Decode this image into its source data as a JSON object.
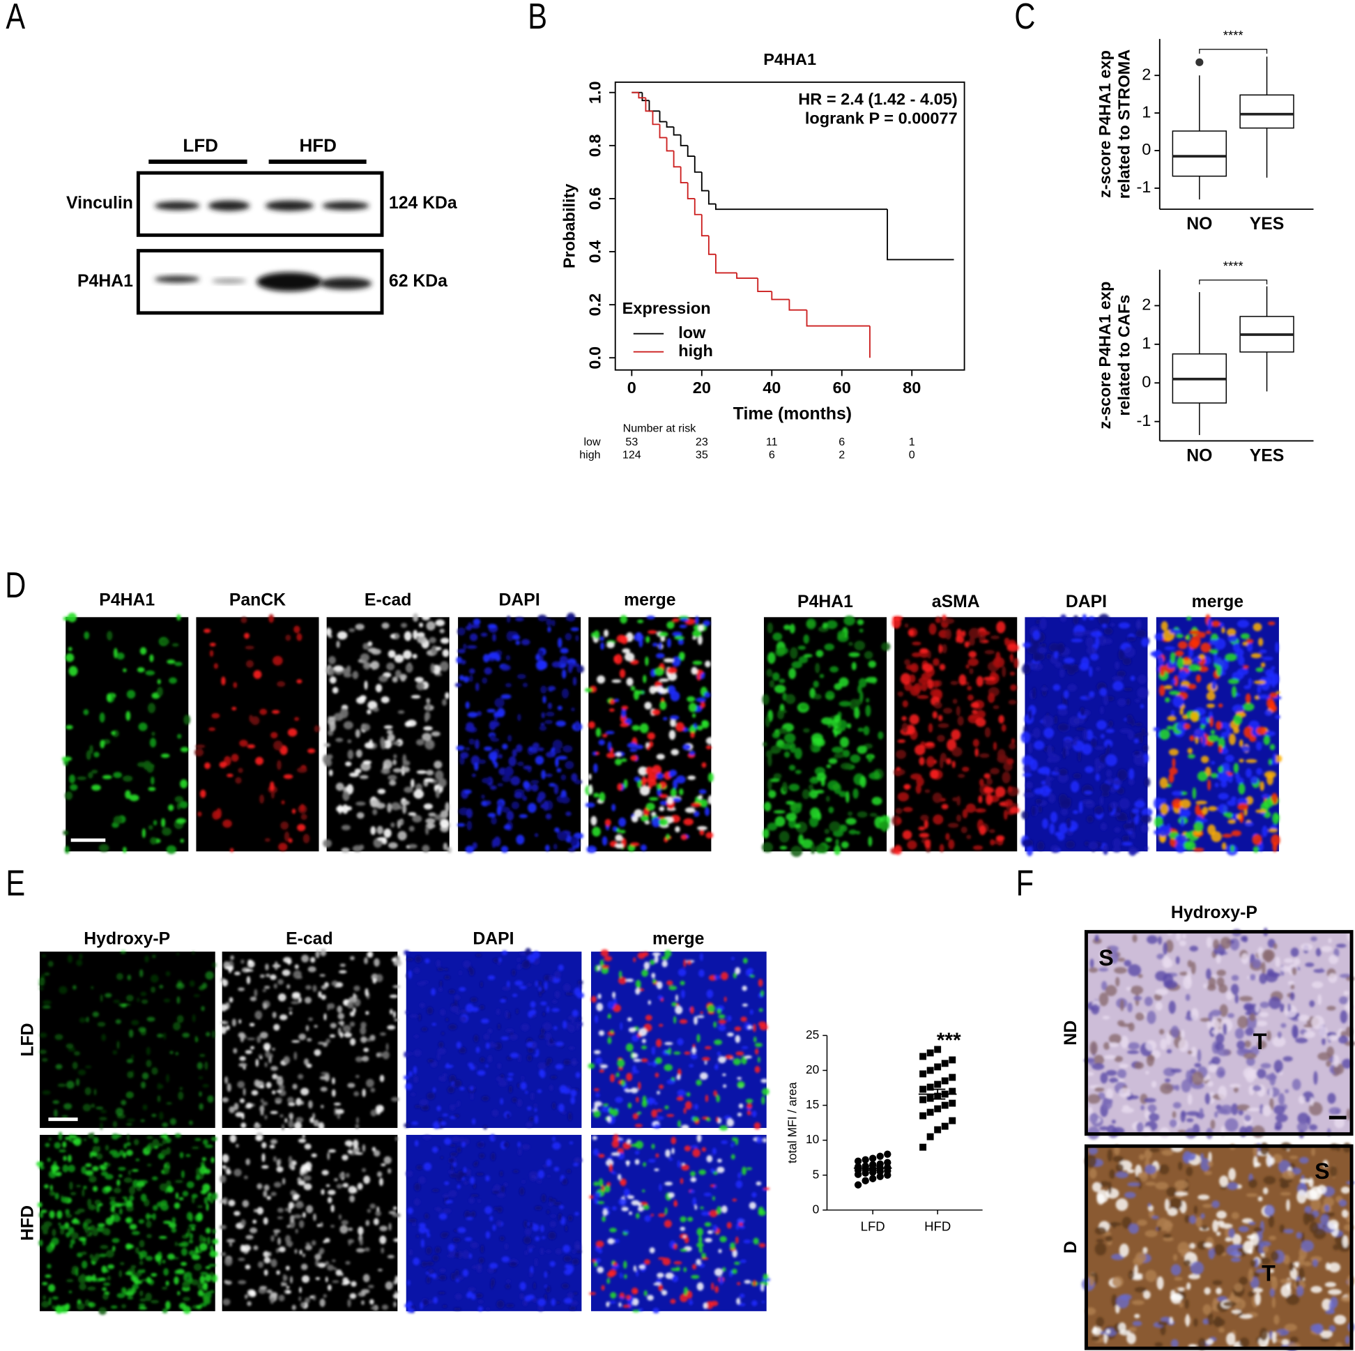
{
  "panel_labels": [
    "A",
    "B",
    "C",
    "D",
    "E",
    "F"
  ],
  "western_blot": {
    "groups": [
      "LFD",
      "HFD"
    ],
    "rows": [
      {
        "protein": "Vinculin",
        "size": "124 KDa"
      },
      {
        "protein": "P4HA1",
        "size": "62 KDa"
      }
    ]
  },
  "panel_d": {
    "left_channels": [
      "P4HA1",
      "PanCK",
      "E-cad",
      "DAPI",
      "merge"
    ],
    "right_channels": [
      "P4HA1",
      "aSMA",
      "DAPI",
      "merge"
    ]
  },
  "panel_e": {
    "channels": [
      "Hydroxy-P",
      "E-cad",
      "DAPI",
      "merge"
    ],
    "rows": [
      "LFD",
      "HFD"
    ]
  },
  "panel_f": {
    "title": "Hydroxy-P",
    "rows": [
      {
        "label": "ND",
        "regions": [
          "S",
          "T"
        ]
      },
      {
        "label": "D",
        "regions": [
          "S",
          "T"
        ]
      }
    ]
  },
  "chart_data": [
    {
      "type": "line",
      "step": true,
      "title": "P4HA1",
      "xlabel": "Time (months)",
      "ylabel": "Probability",
      "xlim": [
        -4.7,
        95
      ],
      "xticks": [
        0,
        20,
        40,
        60,
        80
      ],
      "ylim": [
        -0.046,
        1.039
      ],
      "yticks": [
        {
          "value": 0,
          "label": "0.0"
        },
        0.2,
        0.4,
        0.6,
        0.8,
        {
          "value": 1,
          "label": "1.0"
        }
      ],
      "annotations": [
        "HR = 2.4 (1.42 - 4.05)",
        "logrank P = 0.00077"
      ],
      "legend_title": "Expression",
      "series": [
        {
          "name": "low",
          "color": "#000000",
          "x": [
            0,
            3,
            5,
            8,
            10,
            12,
            14,
            16,
            18,
            20,
            22,
            24,
            73,
            92
          ],
          "values": [
            1,
            0.97,
            0.93,
            0.89,
            0.87,
            0.84,
            0.8,
            0.76,
            0.7,
            0.63,
            0.58,
            0.56,
            0.37,
            0.37
          ]
        },
        {
          "name": "high",
          "color": "#cc1f1f",
          "x": [
            0,
            2,
            4,
            6,
            8,
            10,
            12,
            14,
            16,
            18,
            20,
            22,
            24,
            30,
            36,
            40,
            45,
            50,
            68
          ],
          "values": [
            1,
            0.98,
            0.93,
            0.88,
            0.83,
            0.78,
            0.72,
            0.66,
            0.6,
            0.54,
            0.46,
            0.39,
            0.32,
            0.3,
            0.25,
            0.22,
            0.18,
            0.12,
            0
          ]
        }
      ],
      "risk_table": {
        "title": "Number at risk",
        "rows": [
          [
            53,
            23,
            11,
            6,
            1
          ],
          [
            124,
            35,
            6,
            2,
            0
          ]
        ]
      }
    },
    {
      "type": "box",
      "ylabel": [
        "z-score P4HA1 exp",
        "related to STROMA"
      ],
      "categories": [
        "NO",
        "YES"
      ],
      "ylim": [
        -1.56,
        2.97
      ],
      "yticks": [
        -1,
        0,
        1,
        2
      ],
      "color": "#ffffff",
      "significance": "****",
      "boxes": [
        {
          "whislo": -1.3,
          "q1": -0.68,
          "median": -0.15,
          "q3": 0.52,
          "whishi": 2.0,
          "outliers": [
            2.35
          ]
        },
        {
          "whislo": -0.72,
          "q1": 0.6,
          "median": 0.97,
          "q3": 1.48,
          "whishi": 2.5,
          "outliers": []
        }
      ]
    },
    {
      "type": "box",
      "ylabel": [
        "z-score P4HA1 exp",
        "related to CAFs"
      ],
      "categories": [
        "NO",
        "YES"
      ],
      "ylim": [
        -1.5,
        2.93
      ],
      "yticks": [
        -1,
        0,
        1,
        2
      ],
      "color": "#ffffff",
      "significance": "****",
      "boxes": [
        {
          "whislo": -1.35,
          "q1": -0.52,
          "median": 0.1,
          "q3": 0.75,
          "whishi": 2.35,
          "outliers": []
        },
        {
          "whislo": -0.22,
          "q1": 0.8,
          "median": 1.25,
          "q3": 1.72,
          "whishi": 2.5,
          "outliers": []
        }
      ]
    },
    {
      "type": "scatter",
      "ylabel": "total MFI / area",
      "categories": [
        "LFD",
        "HFD"
      ],
      "markers": [
        "circle",
        "square"
      ],
      "color": "#000000",
      "ylim": [
        0,
        25
      ],
      "yticks": [
        0,
        5,
        10,
        15,
        20,
        25
      ],
      "annotation": "***",
      "values": [
        [
          3.6,
          4.2,
          4.5,
          4.8,
          5.0,
          5.1,
          5.3,
          5.4,
          5.5,
          5.6,
          5.7,
          5.8,
          5.9,
          6.0,
          6.1,
          6.2,
          6.3,
          6.5,
          6.6,
          6.8,
          7.0,
          7.2,
          7.4,
          7.7,
          8.0
        ],
        [
          9.0,
          10.5,
          11.5,
          12.0,
          12.8,
          13.5,
          14.0,
          14.5,
          15.0,
          15.3,
          15.8,
          16.0,
          16.3,
          16.6,
          17.0,
          17.3,
          17.6,
          18.0,
          18.5,
          19.0,
          19.5,
          20.0,
          20.5,
          21.0,
          21.5,
          22.0,
          22.5,
          23.0
        ]
      ],
      "mean": [
        6.0,
        16.6
      ],
      "sem": [
        0.3,
        0.7
      ]
    }
  ]
}
